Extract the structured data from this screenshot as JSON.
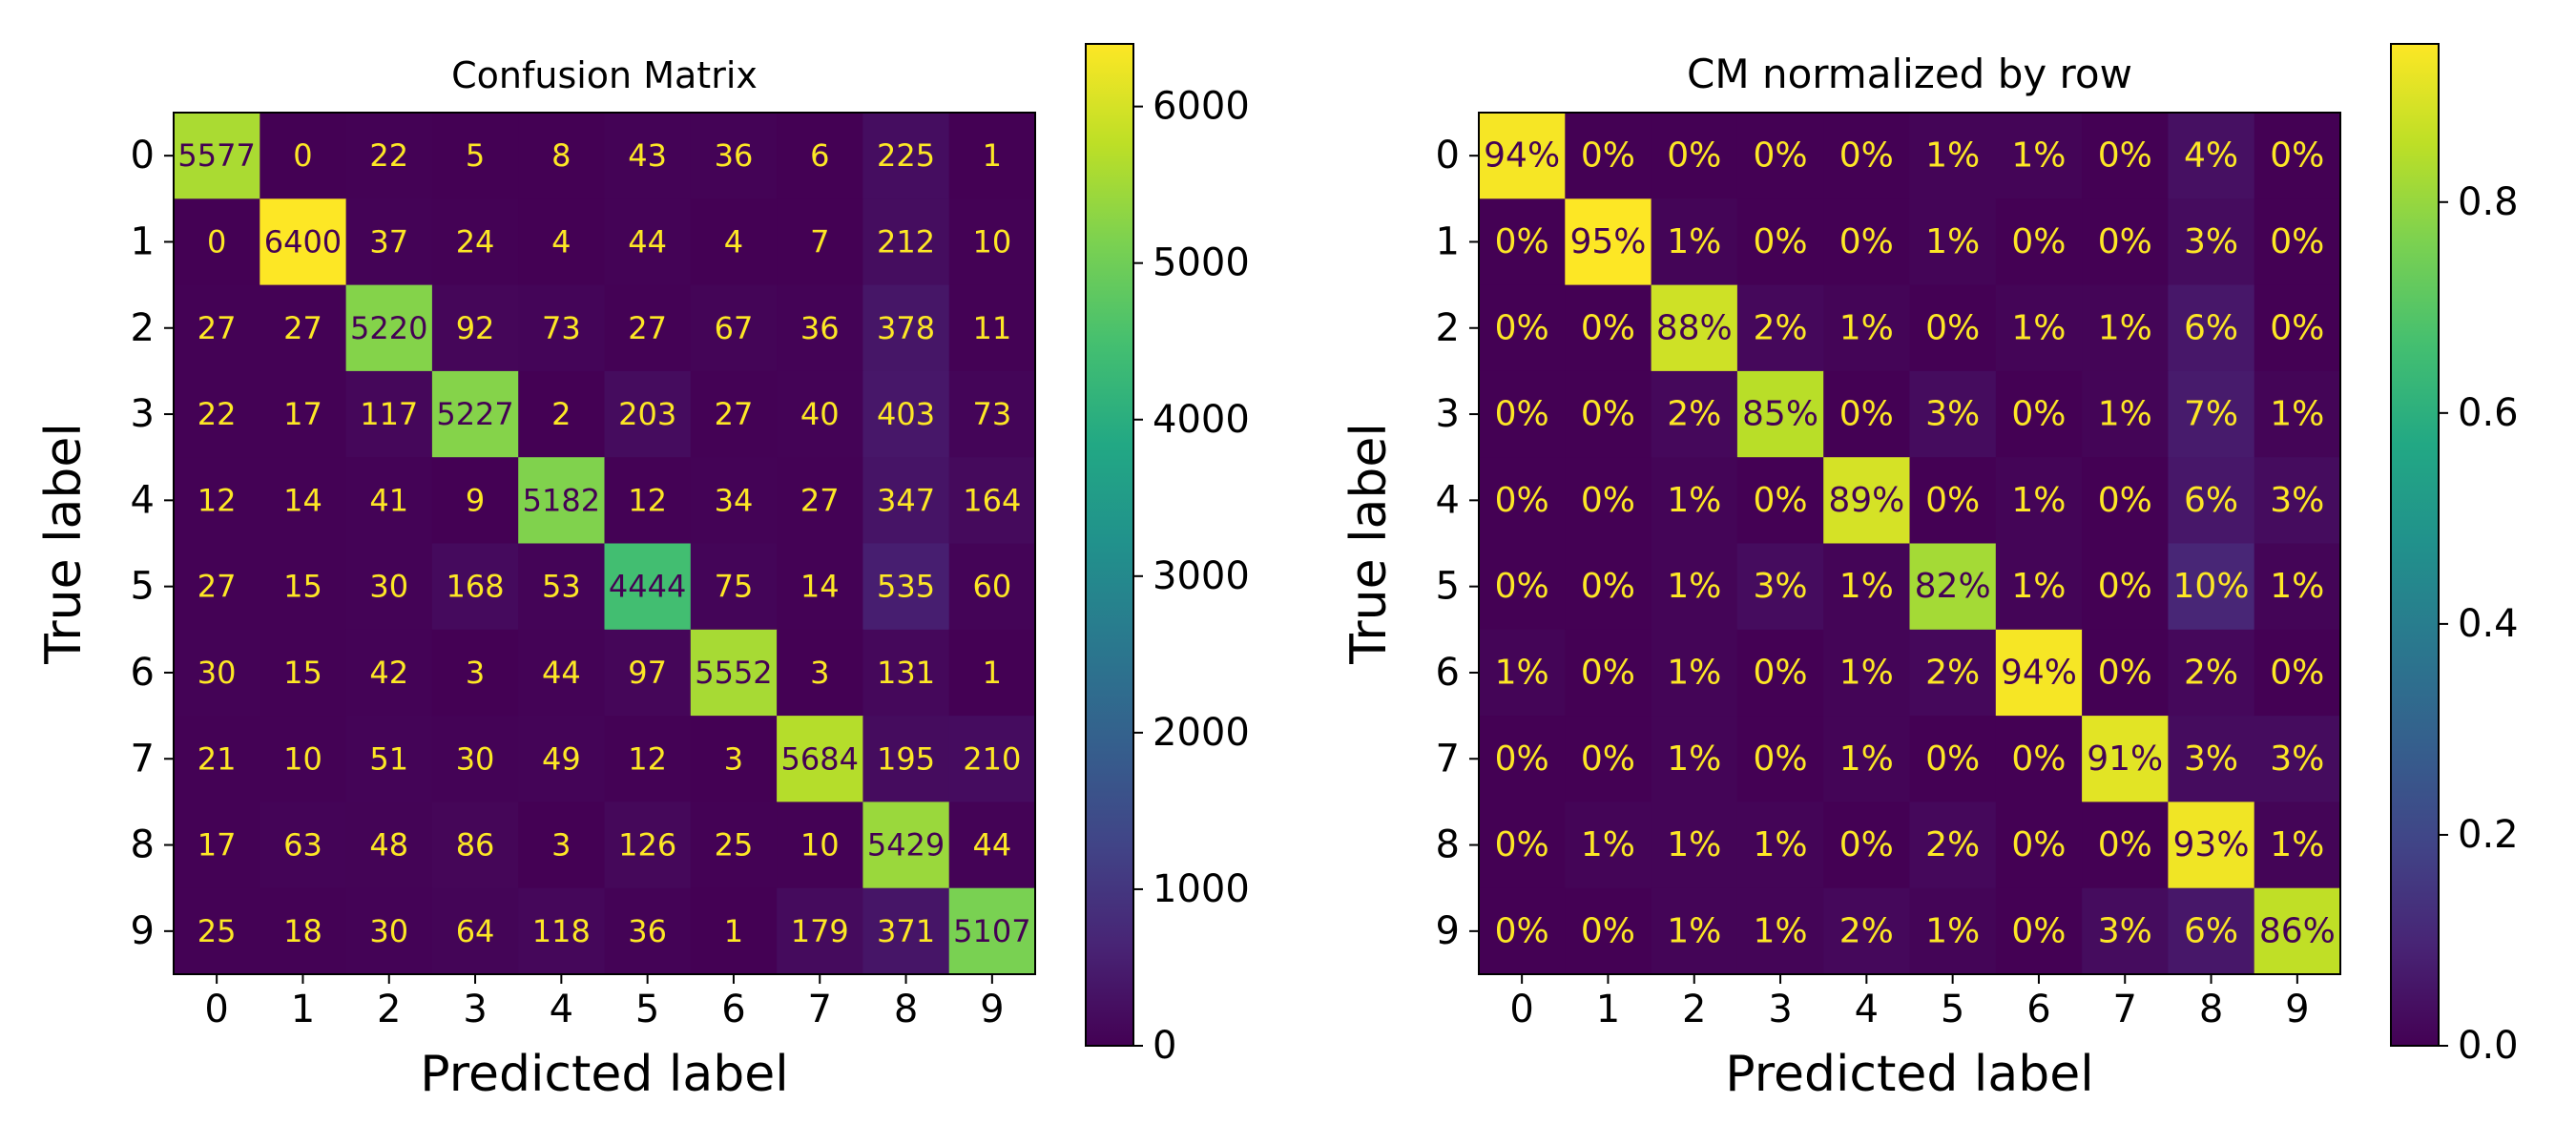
{
  "chart_data": [
    {
      "type": "heatmap",
      "title": "Confusion Matrix",
      "xlabel": "Predicted label",
      "ylabel": "True label",
      "x_ticks": [
        "0",
        "1",
        "2",
        "3",
        "4",
        "5",
        "6",
        "7",
        "8",
        "9"
      ],
      "y_ticks": [
        "0",
        "1",
        "2",
        "3",
        "4",
        "5",
        "6",
        "7",
        "8",
        "9"
      ],
      "colormap": "viridis",
      "value_format": "int",
      "color_range": [
        0,
        6400
      ],
      "colorbar_ticks": [
        0,
        1000,
        2000,
        3000,
        4000,
        5000,
        6000
      ],
      "colorbar_tick_labels": [
        "0",
        "1000",
        "2000",
        "3000",
        "4000",
        "5000",
        "6000"
      ],
      "matrix": [
        [
          5577,
          0,
          22,
          5,
          8,
          43,
          36,
          6,
          225,
          1
        ],
        [
          0,
          6400,
          37,
          24,
          4,
          44,
          4,
          7,
          212,
          10
        ],
        [
          27,
          27,
          5220,
          92,
          73,
          27,
          67,
          36,
          378,
          11
        ],
        [
          22,
          17,
          117,
          5227,
          2,
          203,
          27,
          40,
          403,
          73
        ],
        [
          12,
          14,
          41,
          9,
          5182,
          12,
          34,
          27,
          347,
          164
        ],
        [
          27,
          15,
          30,
          168,
          53,
          4444,
          75,
          14,
          535,
          60
        ],
        [
          30,
          15,
          42,
          3,
          44,
          97,
          5552,
          3,
          131,
          1
        ],
        [
          21,
          10,
          51,
          30,
          49,
          12,
          3,
          5684,
          195,
          210
        ],
        [
          17,
          63,
          48,
          86,
          3,
          126,
          25,
          10,
          5429,
          44
        ],
        [
          25,
          18,
          30,
          64,
          118,
          36,
          1,
          179,
          371,
          5107
        ]
      ]
    },
    {
      "type": "heatmap",
      "title": "CM normalized by row",
      "xlabel": "Predicted label",
      "ylabel": "True label",
      "x_ticks": [
        "0",
        "1",
        "2",
        "3",
        "4",
        "5",
        "6",
        "7",
        "8",
        "9"
      ],
      "y_ticks": [
        "0",
        "1",
        "2",
        "3",
        "4",
        "5",
        "6",
        "7",
        "8",
        "9"
      ],
      "colormap": "viridis",
      "value_format": "percent",
      "color_range": [
        0,
        0.95
      ],
      "colorbar_ticks": [
        0.0,
        0.2,
        0.4,
        0.6,
        0.8
      ],
      "colorbar_tick_labels": [
        "0.0",
        "0.2",
        "0.4",
        "0.6",
        "0.8"
      ],
      "matrix": [
        [
          0.94,
          0.0,
          0.0,
          0.0,
          0.0,
          0.01,
          0.01,
          0.0,
          0.04,
          0.0
        ],
        [
          0.0,
          0.95,
          0.01,
          0.0,
          0.0,
          0.01,
          0.0,
          0.0,
          0.03,
          0.0
        ],
        [
          0.0,
          0.0,
          0.88,
          0.02,
          0.01,
          0.0,
          0.01,
          0.01,
          0.06,
          0.0
        ],
        [
          0.0,
          0.0,
          0.02,
          0.85,
          0.0,
          0.03,
          0.0,
          0.01,
          0.07,
          0.01
        ],
        [
          0.0,
          0.0,
          0.01,
          0.0,
          0.89,
          0.0,
          0.01,
          0.0,
          0.06,
          0.03
        ],
        [
          0.0,
          0.0,
          0.01,
          0.03,
          0.01,
          0.82,
          0.01,
          0.0,
          0.1,
          0.01
        ],
        [
          0.01,
          0.0,
          0.01,
          0.0,
          0.01,
          0.02,
          0.94,
          0.0,
          0.02,
          0.0
        ],
        [
          0.0,
          0.0,
          0.01,
          0.0,
          0.01,
          0.0,
          0.0,
          0.91,
          0.03,
          0.03
        ],
        [
          0.0,
          0.01,
          0.01,
          0.01,
          0.0,
          0.02,
          0.0,
          0.0,
          0.93,
          0.01
        ],
        [
          0.0,
          0.0,
          0.01,
          0.01,
          0.02,
          0.01,
          0.0,
          0.03,
          0.06,
          0.86
        ]
      ]
    }
  ]
}
